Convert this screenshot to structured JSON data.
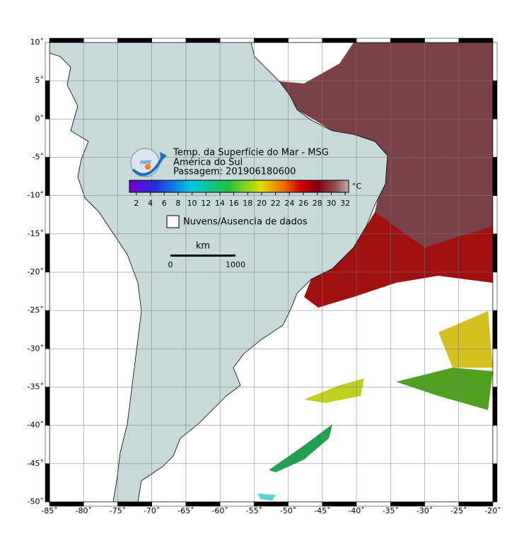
{
  "map": {
    "title": [
      "Temp. da Superfície do Mar - MSG",
      "América do Sul",
      "Passagem: 201906180600"
    ],
    "logo": "INPE",
    "xlim": [
      -85,
      -20
    ],
    "ylim": [
      -50,
      10
    ],
    "xticks": [
      {
        "value": -85,
        "label": "-85˚"
      },
      {
        "value": -80,
        "label": "-80˚"
      },
      {
        "value": -75,
        "label": "-75˚"
      },
      {
        "value": -70,
        "label": "-70˚"
      },
      {
        "value": -65,
        "label": "-65˚"
      },
      {
        "value": -60,
        "label": "-60˚"
      },
      {
        "value": -55,
        "label": "-55˚"
      },
      {
        "value": -50,
        "label": "-50˚"
      },
      {
        "value": -45,
        "label": "-45˚"
      },
      {
        "value": -40,
        "label": "-40˚"
      },
      {
        "value": -35,
        "label": "-35˚"
      },
      {
        "value": -30,
        "label": "-30˚"
      },
      {
        "value": -25,
        "label": "-25˚"
      },
      {
        "value": -20,
        "label": "-20˚"
      }
    ],
    "yticks": [
      {
        "value": 10,
        "label": "10˚"
      },
      {
        "value": 5,
        "label": "5˚"
      },
      {
        "value": 0,
        "label": "0˚"
      },
      {
        "value": -5,
        "label": "-5˚"
      },
      {
        "value": -10,
        "label": "-10˚"
      },
      {
        "value": -15,
        "label": "-15˚"
      },
      {
        "value": -20,
        "label": "-20˚"
      },
      {
        "value": -25,
        "label": "-25˚"
      },
      {
        "value": -30,
        "label": "-30˚"
      },
      {
        "value": -35,
        "label": "-35˚"
      },
      {
        "value": -40,
        "label": "-40˚"
      },
      {
        "value": -45,
        "label": "-45˚"
      },
      {
        "value": -50,
        "label": "-50˚"
      }
    ],
    "colorbar": {
      "unit": "°C",
      "clim": [
        1,
        32.5
      ],
      "ticks": [
        2,
        4,
        6,
        8,
        10,
        12,
        14,
        16,
        18,
        20,
        22,
        24,
        26,
        28,
        30,
        32
      ]
    },
    "legend": "Nuvens/Ausencia de dados",
    "scale": {
      "unit": "km",
      "ticks": [
        0,
        1000
      ]
    }
  }
}
